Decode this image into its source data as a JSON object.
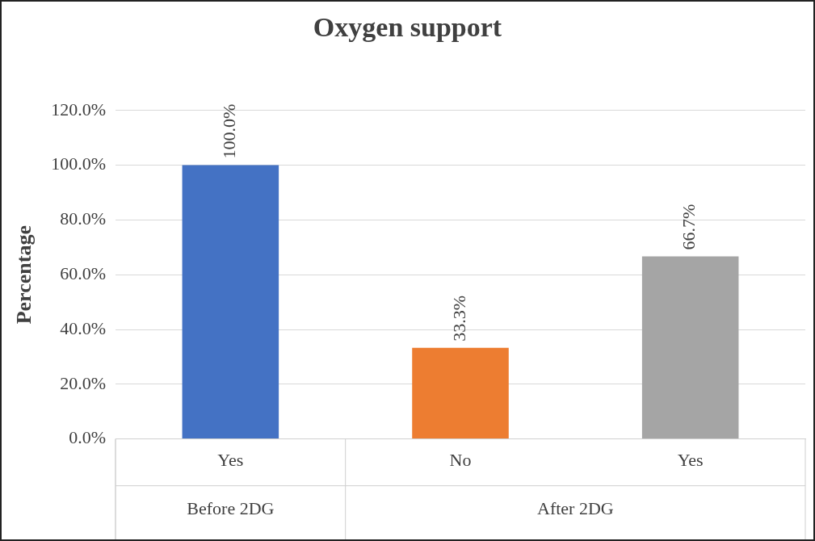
{
  "chart_data": {
    "type": "bar",
    "title": "Oxygen support",
    "ylabel": "Percentage",
    "categories": [
      "Yes",
      "No",
      "Yes"
    ],
    "values": [
      100,
      33.3,
      66.7
    ],
    "colors": [
      "#4472c4",
      "#ed7d31",
      "#a5a5a5"
    ],
    "value_labels": [
      "100.0%",
      "33.3%",
      "66.7%"
    ],
    "ylim": [
      0,
      120
    ],
    "yticks": [
      {
        "value": 0,
        "label": "0.0%"
      },
      {
        "value": 20,
        "label": "20.0%"
      },
      {
        "value": 40,
        "label": "40.0%"
      },
      {
        "value": 60,
        "label": "60.0%"
      },
      {
        "value": 80,
        "label": "80.0%"
      },
      {
        "value": 100,
        "label": "100.0%"
      },
      {
        "value": 120,
        "label": "120.0%"
      }
    ],
    "annotations": [
      "Before 2DG",
      "After 2DG"
    ],
    "grid": "y",
    "legend": false
  }
}
